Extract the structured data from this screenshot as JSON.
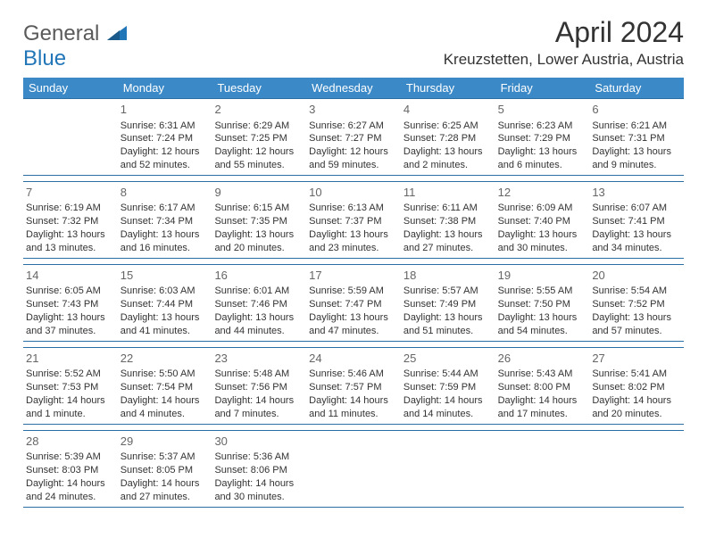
{
  "brand": {
    "text1": "General",
    "text2": "Blue"
  },
  "title": "April 2024",
  "location": "Kreuzstetten, Lower Austria, Austria",
  "colors": {
    "header_bg": "#3b89c7",
    "header_text": "#ffffff",
    "border": "#2a6ea3",
    "brand_gray": "#5a5a5a",
    "brand_blue": "#2176b8",
    "text": "#333333",
    "daynum": "#666666"
  },
  "weekdays": [
    "Sunday",
    "Monday",
    "Tuesday",
    "Wednesday",
    "Thursday",
    "Friday",
    "Saturday"
  ],
  "weeks": [
    [
      {
        "n": "",
        "sr": "",
        "ss": "",
        "d1": "",
        "d2": ""
      },
      {
        "n": "1",
        "sr": "Sunrise: 6:31 AM",
        "ss": "Sunset: 7:24 PM",
        "d1": "Daylight: 12 hours",
        "d2": "and 52 minutes."
      },
      {
        "n": "2",
        "sr": "Sunrise: 6:29 AM",
        "ss": "Sunset: 7:25 PM",
        "d1": "Daylight: 12 hours",
        "d2": "and 55 minutes."
      },
      {
        "n": "3",
        "sr": "Sunrise: 6:27 AM",
        "ss": "Sunset: 7:27 PM",
        "d1": "Daylight: 12 hours",
        "d2": "and 59 minutes."
      },
      {
        "n": "4",
        "sr": "Sunrise: 6:25 AM",
        "ss": "Sunset: 7:28 PM",
        "d1": "Daylight: 13 hours",
        "d2": "and 2 minutes."
      },
      {
        "n": "5",
        "sr": "Sunrise: 6:23 AM",
        "ss": "Sunset: 7:29 PM",
        "d1": "Daylight: 13 hours",
        "d2": "and 6 minutes."
      },
      {
        "n": "6",
        "sr": "Sunrise: 6:21 AM",
        "ss": "Sunset: 7:31 PM",
        "d1": "Daylight: 13 hours",
        "d2": "and 9 minutes."
      }
    ],
    [
      {
        "n": "7",
        "sr": "Sunrise: 6:19 AM",
        "ss": "Sunset: 7:32 PM",
        "d1": "Daylight: 13 hours",
        "d2": "and 13 minutes."
      },
      {
        "n": "8",
        "sr": "Sunrise: 6:17 AM",
        "ss": "Sunset: 7:34 PM",
        "d1": "Daylight: 13 hours",
        "d2": "and 16 minutes."
      },
      {
        "n": "9",
        "sr": "Sunrise: 6:15 AM",
        "ss": "Sunset: 7:35 PM",
        "d1": "Daylight: 13 hours",
        "d2": "and 20 minutes."
      },
      {
        "n": "10",
        "sr": "Sunrise: 6:13 AM",
        "ss": "Sunset: 7:37 PM",
        "d1": "Daylight: 13 hours",
        "d2": "and 23 minutes."
      },
      {
        "n": "11",
        "sr": "Sunrise: 6:11 AM",
        "ss": "Sunset: 7:38 PM",
        "d1": "Daylight: 13 hours",
        "d2": "and 27 minutes."
      },
      {
        "n": "12",
        "sr": "Sunrise: 6:09 AM",
        "ss": "Sunset: 7:40 PM",
        "d1": "Daylight: 13 hours",
        "d2": "and 30 minutes."
      },
      {
        "n": "13",
        "sr": "Sunrise: 6:07 AM",
        "ss": "Sunset: 7:41 PM",
        "d1": "Daylight: 13 hours",
        "d2": "and 34 minutes."
      }
    ],
    [
      {
        "n": "14",
        "sr": "Sunrise: 6:05 AM",
        "ss": "Sunset: 7:43 PM",
        "d1": "Daylight: 13 hours",
        "d2": "and 37 minutes."
      },
      {
        "n": "15",
        "sr": "Sunrise: 6:03 AM",
        "ss": "Sunset: 7:44 PM",
        "d1": "Daylight: 13 hours",
        "d2": "and 41 minutes."
      },
      {
        "n": "16",
        "sr": "Sunrise: 6:01 AM",
        "ss": "Sunset: 7:46 PM",
        "d1": "Daylight: 13 hours",
        "d2": "and 44 minutes."
      },
      {
        "n": "17",
        "sr": "Sunrise: 5:59 AM",
        "ss": "Sunset: 7:47 PM",
        "d1": "Daylight: 13 hours",
        "d2": "and 47 minutes."
      },
      {
        "n": "18",
        "sr": "Sunrise: 5:57 AM",
        "ss": "Sunset: 7:49 PM",
        "d1": "Daylight: 13 hours",
        "d2": "and 51 minutes."
      },
      {
        "n": "19",
        "sr": "Sunrise: 5:55 AM",
        "ss": "Sunset: 7:50 PM",
        "d1": "Daylight: 13 hours",
        "d2": "and 54 minutes."
      },
      {
        "n": "20",
        "sr": "Sunrise: 5:54 AM",
        "ss": "Sunset: 7:52 PM",
        "d1": "Daylight: 13 hours",
        "d2": "and 57 minutes."
      }
    ],
    [
      {
        "n": "21",
        "sr": "Sunrise: 5:52 AM",
        "ss": "Sunset: 7:53 PM",
        "d1": "Daylight: 14 hours",
        "d2": "and 1 minute."
      },
      {
        "n": "22",
        "sr": "Sunrise: 5:50 AM",
        "ss": "Sunset: 7:54 PM",
        "d1": "Daylight: 14 hours",
        "d2": "and 4 minutes."
      },
      {
        "n": "23",
        "sr": "Sunrise: 5:48 AM",
        "ss": "Sunset: 7:56 PM",
        "d1": "Daylight: 14 hours",
        "d2": "and 7 minutes."
      },
      {
        "n": "24",
        "sr": "Sunrise: 5:46 AM",
        "ss": "Sunset: 7:57 PM",
        "d1": "Daylight: 14 hours",
        "d2": "and 11 minutes."
      },
      {
        "n": "25",
        "sr": "Sunrise: 5:44 AM",
        "ss": "Sunset: 7:59 PM",
        "d1": "Daylight: 14 hours",
        "d2": "and 14 minutes."
      },
      {
        "n": "26",
        "sr": "Sunrise: 5:43 AM",
        "ss": "Sunset: 8:00 PM",
        "d1": "Daylight: 14 hours",
        "d2": "and 17 minutes."
      },
      {
        "n": "27",
        "sr": "Sunrise: 5:41 AM",
        "ss": "Sunset: 8:02 PM",
        "d1": "Daylight: 14 hours",
        "d2": "and 20 minutes."
      }
    ],
    [
      {
        "n": "28",
        "sr": "Sunrise: 5:39 AM",
        "ss": "Sunset: 8:03 PM",
        "d1": "Daylight: 14 hours",
        "d2": "and 24 minutes."
      },
      {
        "n": "29",
        "sr": "Sunrise: 5:37 AM",
        "ss": "Sunset: 8:05 PM",
        "d1": "Daylight: 14 hours",
        "d2": "and 27 minutes."
      },
      {
        "n": "30",
        "sr": "Sunrise: 5:36 AM",
        "ss": "Sunset: 8:06 PM",
        "d1": "Daylight: 14 hours",
        "d2": "and 30 minutes."
      },
      {
        "n": "",
        "sr": "",
        "ss": "",
        "d1": "",
        "d2": ""
      },
      {
        "n": "",
        "sr": "",
        "ss": "",
        "d1": "",
        "d2": ""
      },
      {
        "n": "",
        "sr": "",
        "ss": "",
        "d1": "",
        "d2": ""
      },
      {
        "n": "",
        "sr": "",
        "ss": "",
        "d1": "",
        "d2": ""
      }
    ]
  ]
}
